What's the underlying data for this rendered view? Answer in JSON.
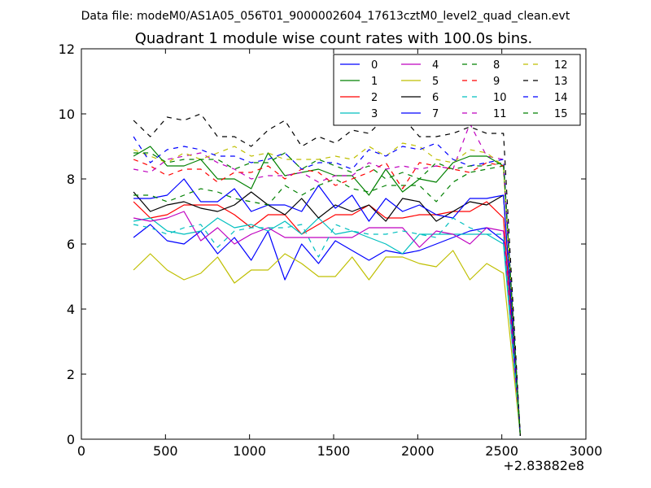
{
  "figure": {
    "suptitle": "Data file: modeM0/AS1A05_056T01_9000002604_17613cztM0_level2_quad_clean.evt"
  },
  "chart_data": {
    "type": "line",
    "title": "Quadrant 1 module wise count rates with 100.0s bins.",
    "xlabel": "",
    "ylabel": "",
    "xlim": [
      0,
      3000
    ],
    "ylim": [
      0,
      12
    ],
    "x_offset_label": "+2.83882e8",
    "x_ticks": [
      0,
      500,
      1000,
      1500,
      2000,
      2500,
      3000
    ],
    "x_tick_labels": [
      "0",
      "500",
      "1000",
      "1500",
      "2000",
      "2500",
      "3000"
    ],
    "y_ticks": [
      0,
      2,
      4,
      6,
      8,
      10,
      12
    ],
    "y_tick_labels": [
      "0",
      "2",
      "4",
      "6",
      "8",
      "10",
      "12"
    ],
    "grid": false,
    "legend_position": "top-right",
    "legend_columns": 4,
    "x": [
      310,
      410,
      510,
      610,
      710,
      810,
      910,
      1010,
      1110,
      1210,
      1310,
      1410,
      1510,
      1610,
      1710,
      1810,
      1910,
      2010,
      2110,
      2210,
      2310,
      2410,
      2510,
      2610
    ],
    "series": [
      {
        "name": "0",
        "color": "#0000ff",
        "dash": "solid",
        "values": [
          6.2,
          6.6,
          6.1,
          6.0,
          6.4,
          5.7,
          6.2,
          5.5,
          6.4,
          4.9,
          6.0,
          5.4,
          6.1,
          5.8,
          5.5,
          5.8,
          5.7,
          5.8,
          6.0,
          6.2,
          6.4,
          6.5,
          6.1,
          0.1
        ]
      },
      {
        "name": "1",
        "color": "#008000",
        "dash": "solid",
        "values": [
          8.7,
          9.0,
          8.4,
          8.4,
          8.6,
          8.0,
          8.0,
          7.7,
          8.8,
          8.1,
          8.2,
          8.3,
          8.1,
          8.1,
          7.5,
          8.3,
          7.6,
          8.0,
          7.9,
          8.5,
          8.7,
          8.7,
          8.4,
          0.1
        ]
      },
      {
        "name": "2",
        "color": "#ff0000",
        "dash": "solid",
        "values": [
          7.3,
          6.8,
          6.9,
          7.2,
          7.2,
          7.2,
          6.9,
          6.5,
          6.9,
          6.9,
          6.3,
          6.6,
          6.9,
          6.9,
          7.2,
          6.8,
          6.8,
          6.9,
          6.9,
          7.0,
          7.0,
          7.3,
          6.8,
          0.1
        ]
      },
      {
        "name": "3",
        "color": "#00bfbf",
        "dash": "solid",
        "values": [
          6.7,
          6.8,
          6.4,
          6.3,
          6.4,
          6.8,
          6.5,
          6.6,
          6.4,
          6.7,
          6.3,
          6.8,
          6.3,
          6.4,
          6.2,
          6.0,
          5.7,
          6.3,
          6.3,
          6.3,
          6.3,
          6.3,
          6.0,
          0.1
        ]
      },
      {
        "name": "4",
        "color": "#bf00bf",
        "dash": "solid",
        "values": [
          6.8,
          6.7,
          6.8,
          7.0,
          6.1,
          6.5,
          6.0,
          6.3,
          6.5,
          6.2,
          6.2,
          6.2,
          6.2,
          6.2,
          6.5,
          6.5,
          6.5,
          5.9,
          6.4,
          6.3,
          6.0,
          6.5,
          6.4,
          0.1
        ]
      },
      {
        "name": "5",
        "color": "#bfbf00",
        "dash": "solid",
        "values": [
          5.2,
          5.7,
          5.2,
          4.9,
          5.1,
          5.6,
          4.8,
          5.2,
          5.2,
          5.7,
          5.4,
          5.0,
          5.0,
          5.6,
          4.9,
          5.6,
          5.6,
          5.4,
          5.3,
          5.8,
          4.9,
          5.4,
          5.1,
          0.1
        ]
      },
      {
        "name": "6",
        "color": "#000000",
        "dash": "solid",
        "values": [
          7.6,
          7.0,
          7.2,
          7.3,
          7.1,
          7.0,
          7.2,
          7.6,
          7.2,
          6.9,
          7.4,
          6.8,
          7.2,
          7.0,
          7.2,
          6.7,
          7.4,
          7.3,
          6.7,
          7.0,
          7.3,
          7.2,
          7.5,
          0.1
        ]
      },
      {
        "name": "7",
        "color": "#0000ff",
        "dash": "solid",
        "values": [
          7.4,
          7.4,
          7.5,
          8.0,
          7.3,
          7.3,
          7.7,
          7.0,
          7.2,
          7.2,
          7.0,
          7.8,
          7.1,
          7.5,
          6.7,
          7.4,
          7.0,
          7.2,
          6.9,
          6.8,
          7.4,
          7.4,
          7.5,
          0.1
        ]
      },
      {
        "name": "8",
        "color": "#008000",
        "dash": "dashed",
        "values": [
          7.5,
          7.5,
          7.3,
          7.5,
          7.7,
          7.6,
          7.4,
          7.3,
          7.2,
          7.8,
          7.5,
          7.8,
          8.0,
          7.7,
          7.6,
          7.8,
          7.8,
          7.8,
          7.3,
          7.9,
          8.2,
          8.3,
          8.4,
          0.1
        ]
      },
      {
        "name": "9",
        "color": "#ff0000",
        "dash": "dashed",
        "values": [
          8.6,
          8.4,
          8.1,
          8.3,
          8.3,
          7.9,
          8.2,
          8.2,
          8.4,
          8.0,
          8.3,
          8.2,
          7.8,
          8.0,
          8.2,
          8.5,
          7.7,
          8.5,
          8.4,
          8.3,
          8.2,
          8.5,
          8.4,
          0.1
        ]
      },
      {
        "name": "10",
        "color": "#00bfbf",
        "dash": "dashed",
        "values": [
          6.6,
          6.5,
          6.3,
          6.5,
          6.6,
          5.9,
          6.4,
          6.5,
          6.5,
          6.5,
          6.6,
          5.6,
          6.6,
          6.4,
          6.3,
          6.3,
          6.4,
          6.3,
          6.2,
          6.8,
          6.5,
          6.3,
          6.3,
          0.1
        ]
      },
      {
        "name": "11",
        "color": "#bf00bf",
        "dash": "dashed",
        "values": [
          8.3,
          8.2,
          8.6,
          8.7,
          8.8,
          8.5,
          8.3,
          8.0,
          8.1,
          8.1,
          8.2,
          7.9,
          8.1,
          8.1,
          8.5,
          8.3,
          8.4,
          8.3,
          8.4,
          8.3,
          9.7,
          8.7,
          8.6,
          0.1
        ]
      },
      {
        "name": "12",
        "color": "#bfbf00",
        "dash": "dashed",
        "values": [
          8.9,
          8.7,
          8.5,
          8.8,
          8.6,
          8.8,
          9.0,
          8.7,
          8.8,
          8.6,
          8.6,
          8.6,
          8.7,
          8.6,
          9.0,
          8.7,
          9.1,
          9.0,
          8.6,
          8.5,
          8.9,
          8.8,
          8.4,
          0.1
        ]
      },
      {
        "name": "13",
        "color": "#000000",
        "dash": "dashed",
        "values": [
          9.8,
          9.3,
          9.9,
          9.8,
          10.0,
          9.3,
          9.3,
          9.0,
          9.5,
          9.8,
          9.0,
          9.3,
          9.1,
          9.5,
          9.4,
          9.9,
          9.9,
          9.3,
          9.3,
          9.4,
          9.6,
          9.4,
          9.4,
          0.1
        ]
      },
      {
        "name": "14",
        "color": "#0000ff",
        "dash": "dashed",
        "values": [
          9.3,
          8.5,
          8.9,
          9.0,
          8.9,
          8.7,
          8.7,
          8.5,
          8.6,
          8.8,
          8.3,
          8.5,
          8.5,
          8.3,
          8.9,
          8.7,
          9.0,
          8.9,
          9.1,
          8.6,
          8.4,
          8.5,
          8.6,
          0.1
        ]
      },
      {
        "name": "15",
        "color": "#008000",
        "dash": "dashed",
        "values": [
          8.8,
          8.8,
          8.5,
          8.6,
          8.6,
          8.6,
          8.3,
          8.5,
          8.5,
          8.8,
          8.3,
          8.6,
          8.4,
          8.2,
          8.4,
          8.0,
          8.2,
          8.0,
          8.5,
          8.3,
          8.4,
          8.4,
          8.5,
          0.1
        ]
      }
    ]
  }
}
